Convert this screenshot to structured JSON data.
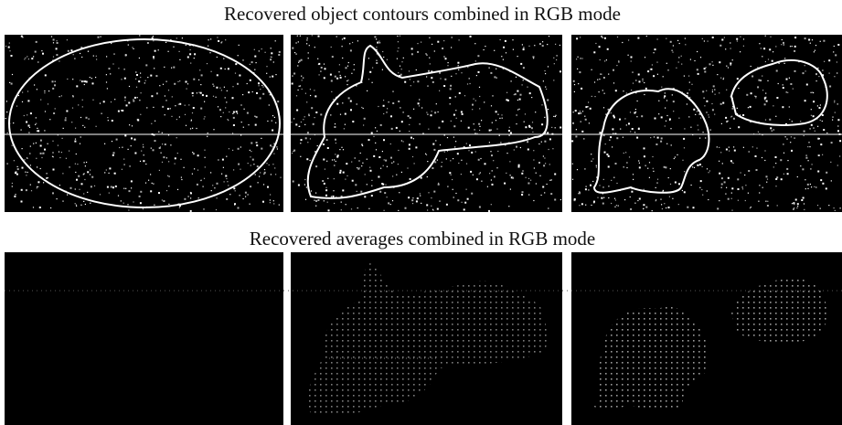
{
  "top_row": {
    "title": "Recovered object contours combined in RGB mode"
  },
  "bottom_row": {
    "title": "Recovered averages combined in RGB mode"
  }
}
